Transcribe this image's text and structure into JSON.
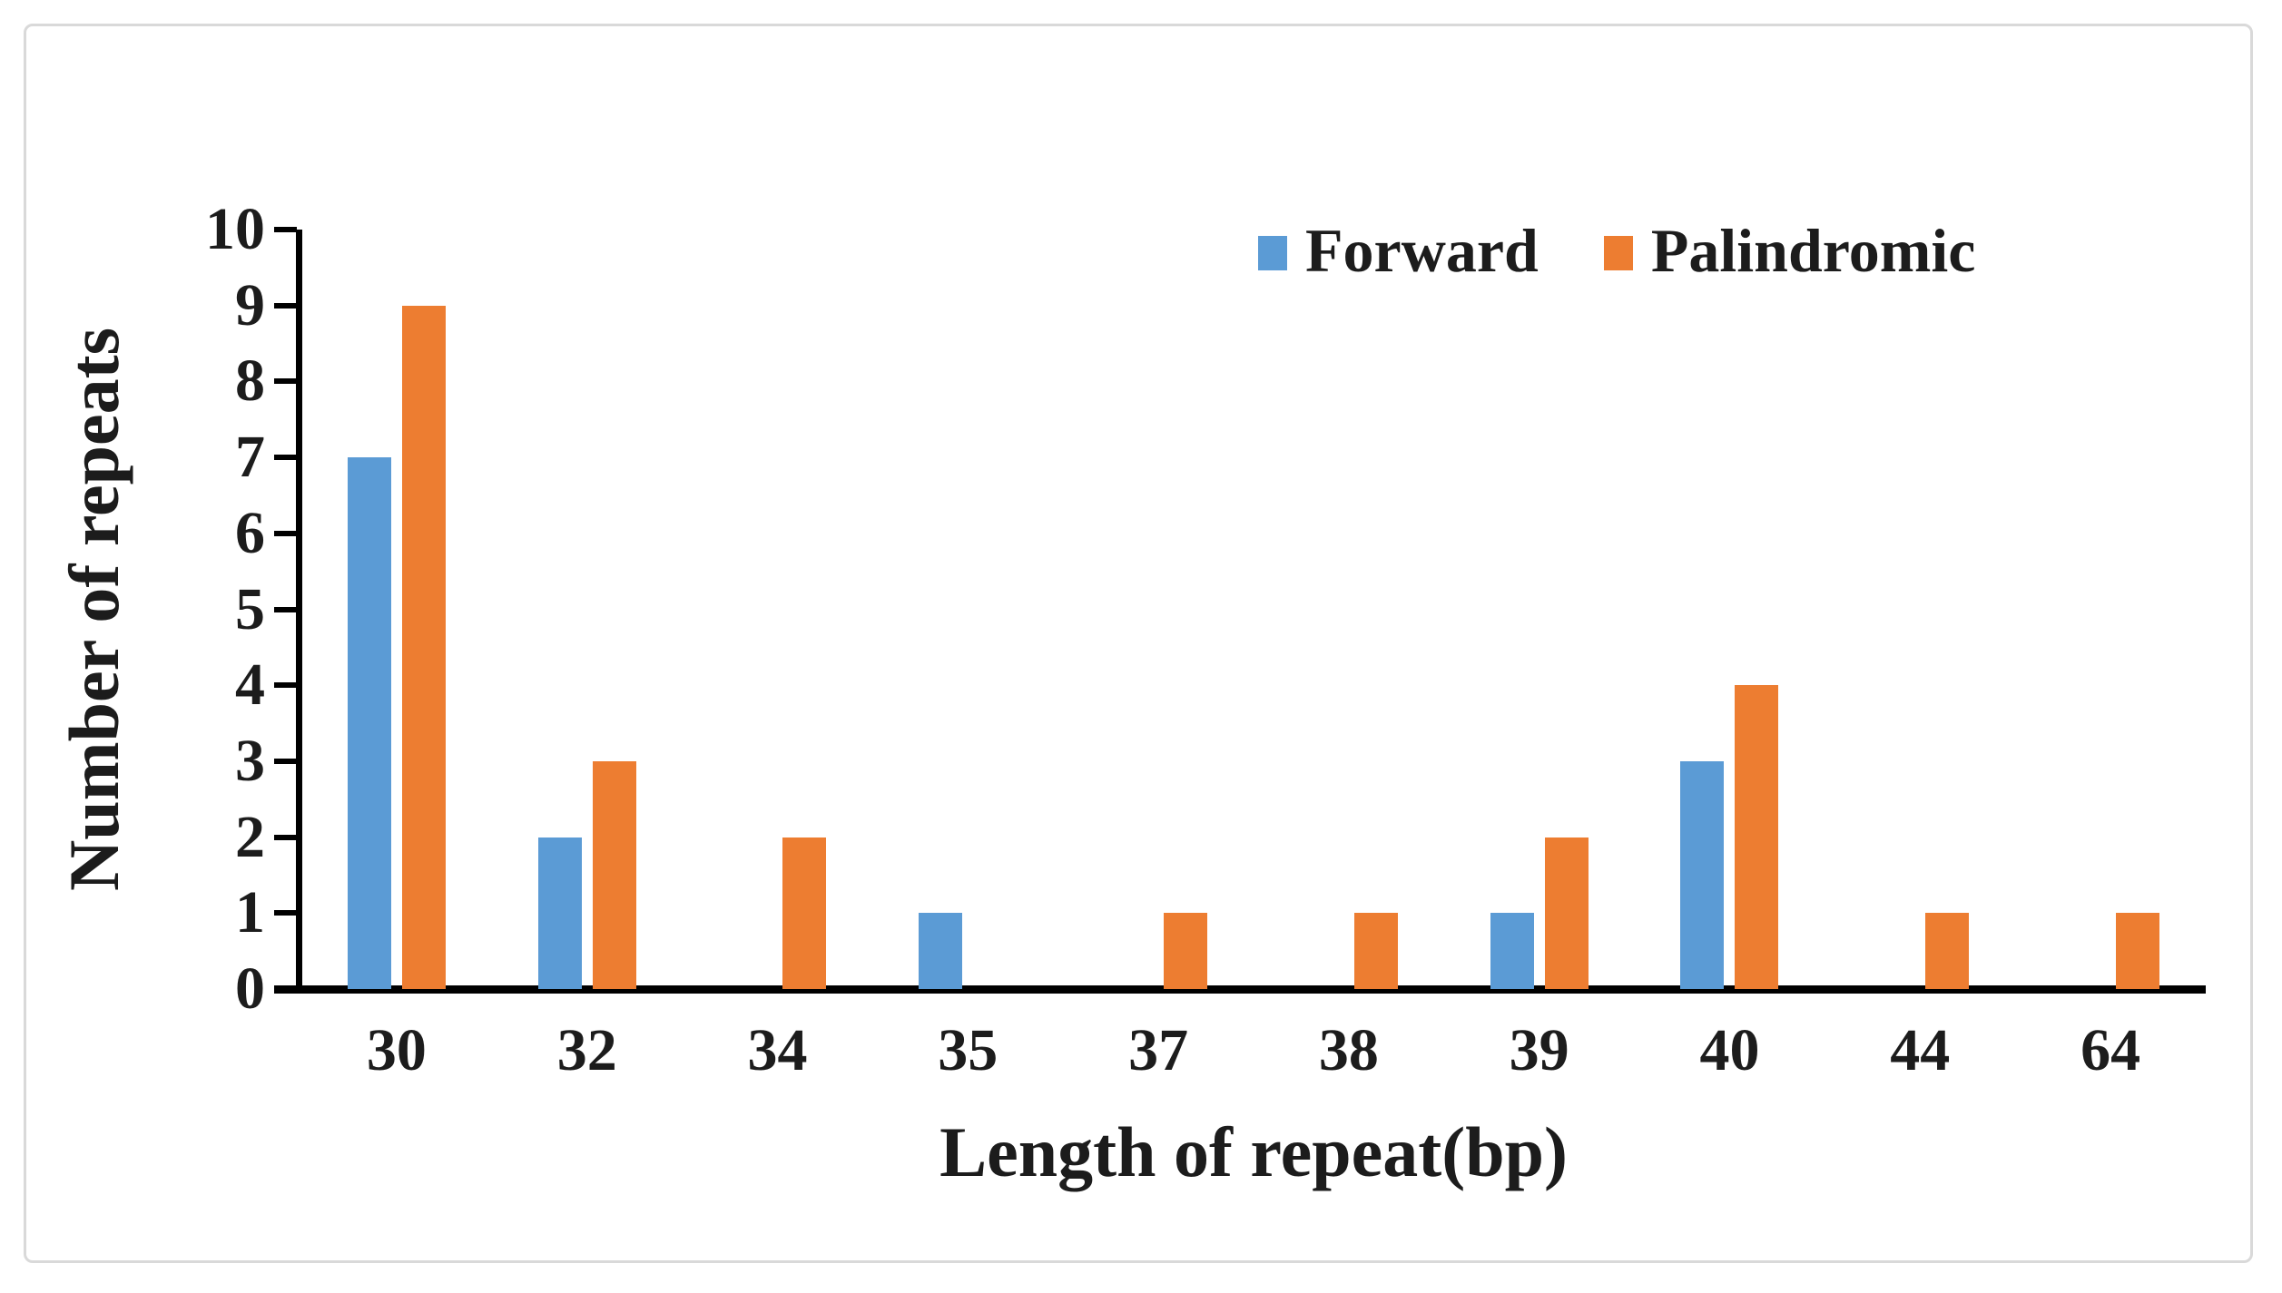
{
  "chart_data": {
    "type": "bar",
    "title": "",
    "xlabel": "Length of repeat(bp)",
    "ylabel": "Number of repeats",
    "categories": [
      "30",
      "32",
      "34",
      "35",
      "37",
      "38",
      "39",
      "40",
      "44",
      "64"
    ],
    "series": [
      {
        "name": "Forward",
        "color": "#5B9BD5",
        "values": [
          7,
          2,
          0,
          1,
          0,
          0,
          1,
          3,
          0,
          0
        ]
      },
      {
        "name": "Palindromic",
        "color": "#ED7D31",
        "values": [
          9,
          3,
          2,
          0,
          1,
          1,
          2,
          4,
          1,
          1
        ]
      }
    ],
    "ylim": [
      0,
      10
    ],
    "yticks": [
      0,
      1,
      2,
      3,
      4,
      5,
      6,
      7,
      8,
      9,
      10
    ],
    "grid": false,
    "legend_position": "top-right-inside",
    "axis_color": "#000000",
    "text_color": "#1c1c1c",
    "frame_border_color": "#d9d9d9",
    "background": "#ffffff"
  }
}
